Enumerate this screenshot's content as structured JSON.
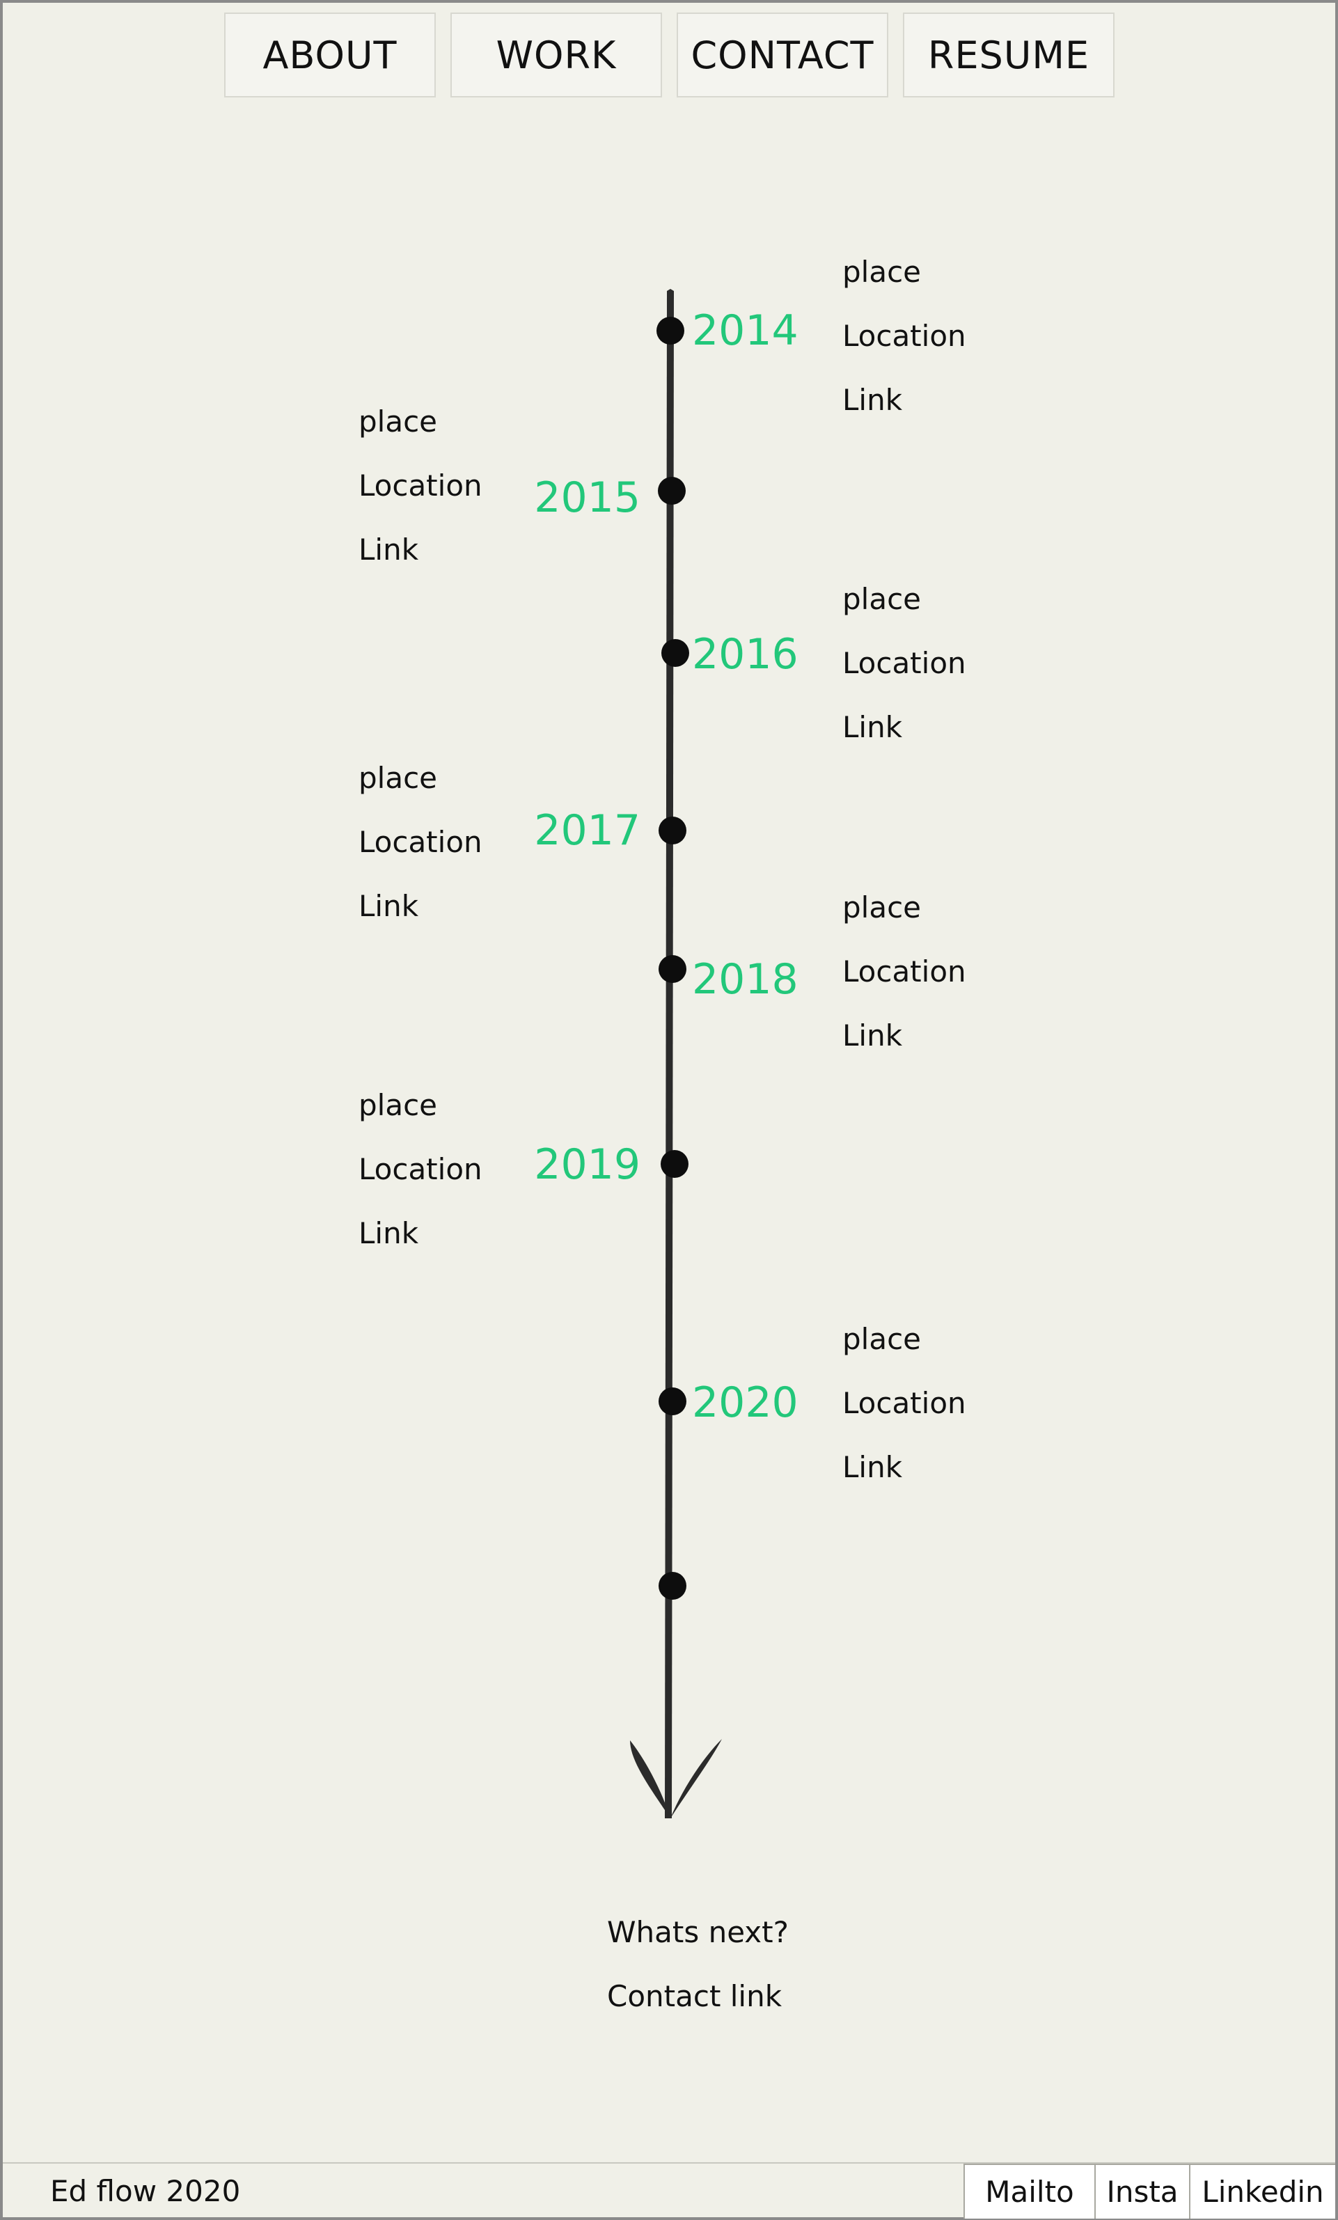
{
  "nav": {
    "about": "ABOUT",
    "work": "WORK",
    "contact": "CONTACT",
    "resume": "RESUME"
  },
  "timeline": [
    {
      "year": "2014",
      "side": "right",
      "place": "place",
      "location": "Location",
      "link": "Link"
    },
    {
      "year": "2015",
      "side": "left",
      "place": "place",
      "location": "Location",
      "link": "Link"
    },
    {
      "year": "2016",
      "side": "right",
      "place": "place",
      "location": "Location",
      "link": "Link"
    },
    {
      "year": "2017",
      "side": "left",
      "place": "place",
      "location": "Location",
      "link": "Link"
    },
    {
      "year": "2018",
      "side": "right",
      "place": "place",
      "location": "Location",
      "link": "Link"
    },
    {
      "year": "2019",
      "side": "left",
      "place": "place",
      "location": "Location",
      "link": "Link"
    },
    {
      "year": "2020",
      "side": "right",
      "place": "place",
      "location": "Location",
      "link": "Link"
    }
  ],
  "closing": {
    "question": "Whats next?",
    "link": "Contact link"
  },
  "footer": {
    "title": "Ed flow 2020",
    "links": [
      "Mailto",
      "Insta",
      "Linkedin"
    ]
  },
  "colors": {
    "background": "#f0f0e8",
    "year_accent": "#22c77a",
    "dot": "#0d0d0d"
  }
}
